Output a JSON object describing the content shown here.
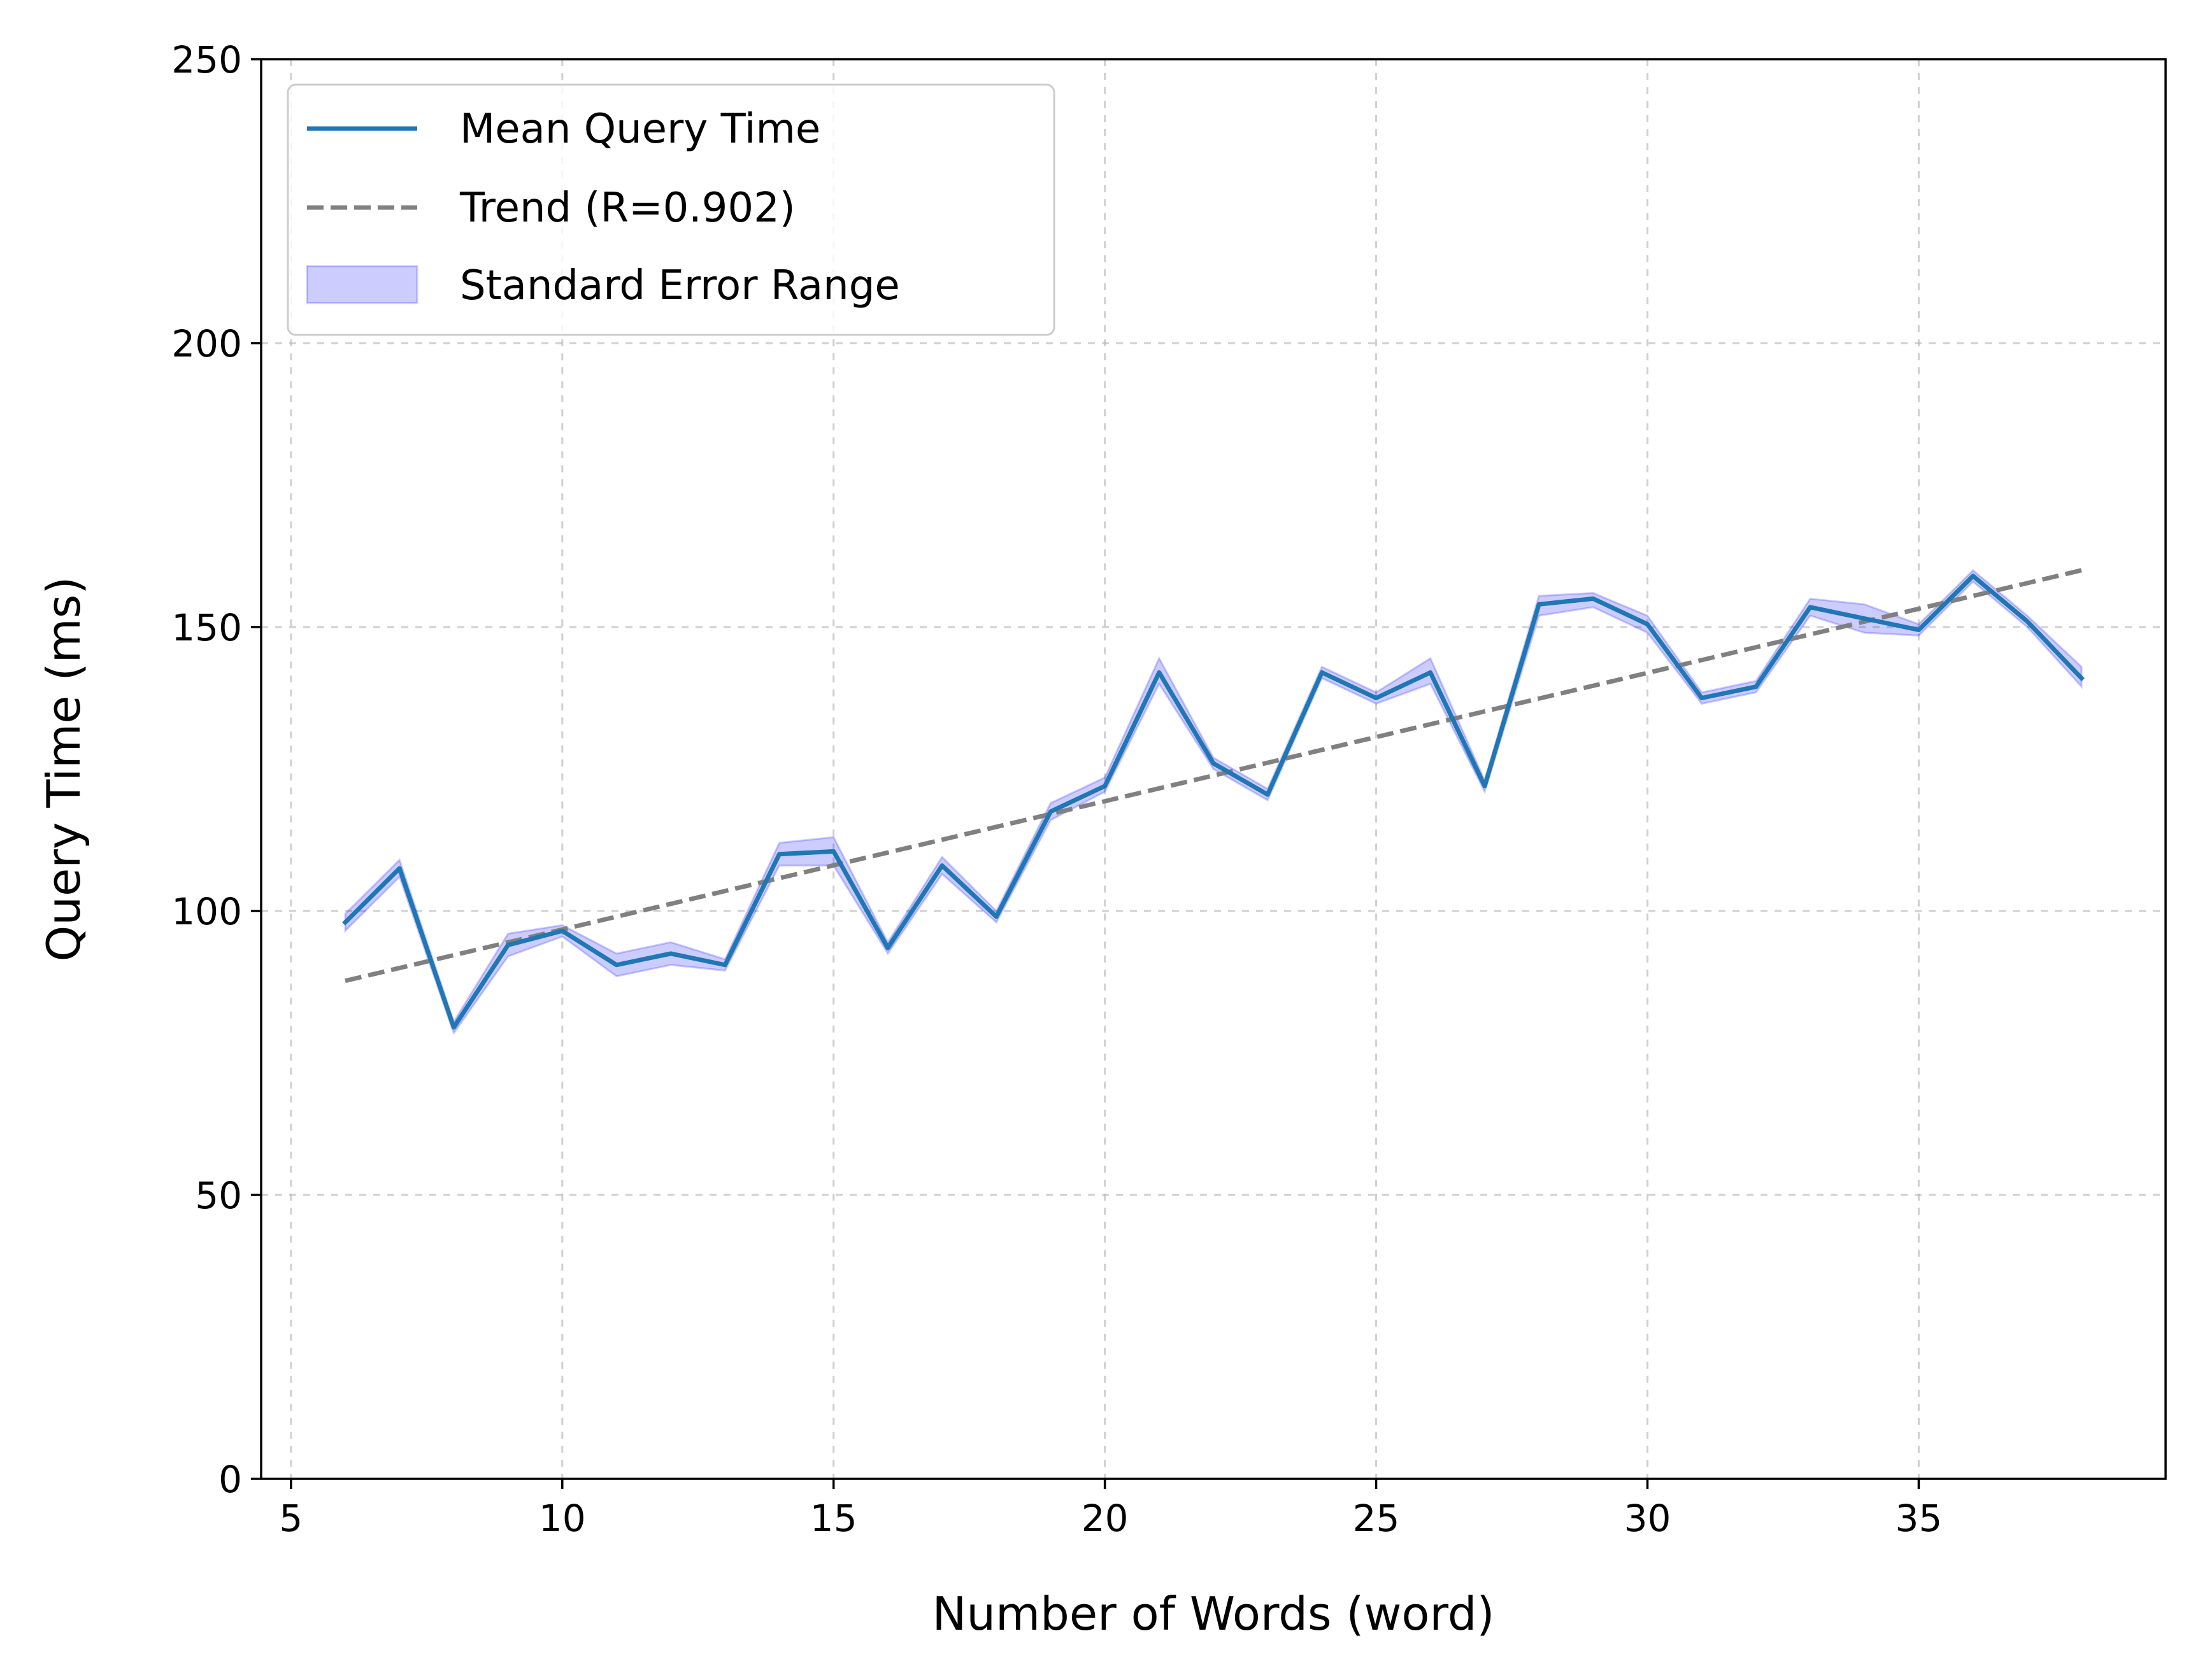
{
  "chart_data": {
    "type": "line",
    "xlabel": "Number of Words (word)",
    "ylabel": "Query Time (ms)",
    "xlim": [
      4.45,
      39.55
    ],
    "ylim": [
      0,
      250
    ],
    "xticks": [
      5,
      10,
      15,
      20,
      25,
      30,
      35
    ],
    "yticks": [
      0,
      50,
      100,
      150,
      200,
      250
    ],
    "grid": true,
    "legend_position": "top-left",
    "legend": [
      "Mean Query Time",
      "Trend (R=0.902)",
      "Standard Error Range"
    ],
    "x": [
      6,
      7,
      8,
      9,
      10,
      11,
      12,
      13,
      14,
      15,
      16,
      17,
      18,
      19,
      20,
      21,
      22,
      23,
      24,
      25,
      26,
      27,
      28,
      29,
      30,
      31,
      32,
      33,
      34,
      35,
      36,
      37,
      38
    ],
    "series": [
      {
        "name": "Mean Query Time",
        "color": "#1f77b4",
        "values": [
          98,
          107.5,
          79.5,
          94,
          96.5,
          90.5,
          92.5,
          90.5,
          110,
          110.5,
          93.5,
          108,
          99,
          117.5,
          122,
          142,
          126,
          120.5,
          142,
          137.5,
          142,
          122,
          154,
          155,
          150.5,
          137.5,
          139.5,
          153.5,
          151.5,
          149.5,
          159,
          151,
          141
        ]
      }
    ],
    "error_band": {
      "name": "Standard Error Range",
      "color": "#0000ff",
      "lower": [
        96.5,
        106,
        78.5,
        92,
        95.5,
        88.5,
        90.5,
        89.5,
        108,
        108,
        92.5,
        106.5,
        98,
        116,
        121,
        140,
        125,
        119.5,
        141,
        136.5,
        140,
        121,
        152,
        153.5,
        149,
        136.5,
        138.5,
        152,
        149,
        148.5,
        158,
        150,
        139.5
      ],
      "upper": [
        99.5,
        109,
        80.5,
        96,
        97.5,
        92.5,
        94.5,
        91.5,
        112,
        113,
        94.5,
        109.5,
        100,
        119,
        123.5,
        144.5,
        127,
        121.5,
        143,
        138.5,
        144.5,
        123,
        155.5,
        156,
        152,
        138.5,
        140.5,
        155,
        154,
        150.5,
        160,
        152,
        143
      ]
    },
    "trend": {
      "name": "Trend (R=0.902)",
      "color": "#808080",
      "x": [
        6,
        38
      ],
      "values": [
        87.7,
        160
      ]
    }
  }
}
